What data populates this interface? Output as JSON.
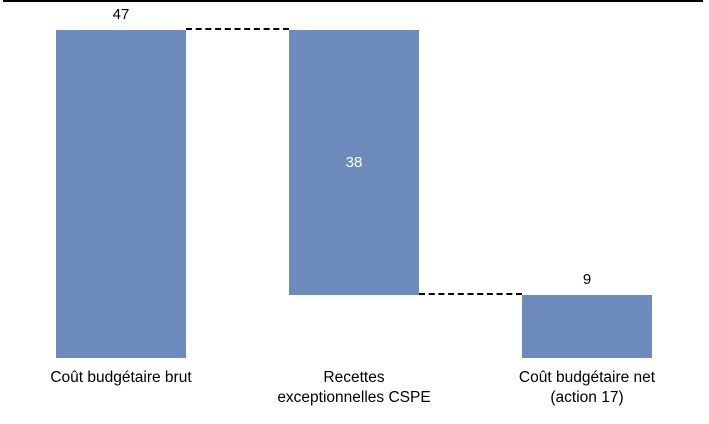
{
  "chart_data": {
    "type": "bar",
    "subtype": "waterfall",
    "title": "",
    "xlabel": "",
    "ylabel": "",
    "ylim": [
      0,
      47
    ],
    "grid": false,
    "legend": false,
    "bar_color": "#6D8CBD",
    "axis_color": "#000000",
    "connector_color": "#000000",
    "categories": [
      "Coût budgétaire brut",
      "Recettes exceptionnelles CSPE",
      "Coût budgétaire net (action 17)"
    ],
    "values": [
      47,
      38,
      9
    ],
    "bars": [
      {
        "name": "cout-budgetaire-brut",
        "label_lines": [
          "Coût budgétaire brut"
        ],
        "from": 0,
        "to": 47,
        "value": 47,
        "value_label": "47",
        "value_label_position": "above",
        "value_label_color": "#000000"
      },
      {
        "name": "recettes-exceptionnelles-cspe",
        "label_lines": [
          "Recettes",
          "exceptionnelles CSPE"
        ],
        "from": 9,
        "to": 47,
        "value": 38,
        "value_label": "38",
        "value_label_position": "inside",
        "value_label_color": "#FFFFFF"
      },
      {
        "name": "cout-budgetaire-net-action-17",
        "label_lines": [
          "Coût budgétaire net",
          "(action 17)"
        ],
        "from": 0,
        "to": 9,
        "value": 9,
        "value_label": "9",
        "value_label_position": "above",
        "value_label_color": "#000000"
      }
    ],
    "connectors": [
      {
        "level": 47,
        "from_bar": 0,
        "to_bar": 1,
        "style": "dashed"
      },
      {
        "level": 9,
        "from_bar": 1,
        "to_bar": 2,
        "style": "dashed"
      }
    ]
  }
}
